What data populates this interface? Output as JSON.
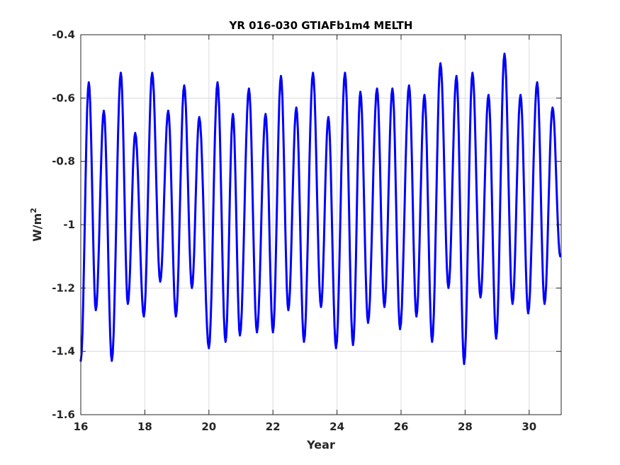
{
  "chart_data": {
    "type": "line",
    "title": "YR 016-030 GTIAFb1m4 MELTH",
    "xlabel": "Year",
    "ylabel_base": "W/m",
    "ylabel_sup": "2",
    "xlim": [
      16,
      31
    ],
    "ylim": [
      -1.6,
      -0.4
    ],
    "xticks": [
      16,
      18,
      20,
      22,
      24,
      26,
      28,
      30
    ],
    "xtick_labels": [
      "16",
      "18",
      "20",
      "22",
      "24",
      "26",
      "28",
      "30"
    ],
    "yticks": [
      -1.6,
      -1.4,
      -1.2,
      -1.0,
      -0.8,
      -0.6,
      -0.4
    ],
    "ytick_labels": [
      "-1.6",
      "-1.4",
      "-1.2",
      "-1",
      "-0.8",
      "-0.6",
      "-0.4"
    ],
    "grid": true,
    "line_color": "#0000ff",
    "series": [
      {
        "x": [
          16.0,
          16.25,
          16.47,
          16.72,
          16.97,
          17.25,
          17.47,
          17.7,
          17.97,
          18.23,
          18.48,
          18.73,
          18.97,
          19.23,
          19.47,
          19.7,
          20.0,
          20.27,
          20.52,
          20.75,
          20.97,
          21.25,
          21.5,
          21.77,
          22.0,
          22.25,
          22.48,
          22.73,
          22.97,
          23.25,
          23.5,
          23.73,
          23.97,
          24.25,
          24.5,
          24.73,
          24.97,
          25.25,
          25.48,
          25.73,
          25.97,
          26.25,
          26.48,
          26.73,
          26.97,
          27.23,
          27.48,
          27.73,
          27.97,
          28.23,
          28.48,
          28.73,
          28.97,
          29.23,
          29.48,
          29.73,
          29.97,
          30.25,
          30.48,
          30.73,
          30.97
        ],
        "y": [
          -1.43,
          -0.55,
          -1.27,
          -0.64,
          -1.43,
          -0.52,
          -1.25,
          -0.71,
          -1.29,
          -0.52,
          -1.18,
          -0.64,
          -1.29,
          -0.56,
          -1.2,
          -0.66,
          -1.39,
          -0.55,
          -1.37,
          -0.65,
          -1.35,
          -0.57,
          -1.34,
          -0.65,
          -1.34,
          -0.53,
          -1.27,
          -0.63,
          -1.37,
          -0.52,
          -1.26,
          -0.66,
          -1.39,
          -0.52,
          -1.38,
          -0.58,
          -1.31,
          -0.57,
          -1.26,
          -0.57,
          -1.33,
          -0.56,
          -1.29,
          -0.59,
          -1.37,
          -0.49,
          -1.2,
          -0.53,
          -1.44,
          -0.52,
          -1.23,
          -0.59,
          -1.36,
          -0.46,
          -1.25,
          -0.59,
          -1.28,
          -0.55,
          -1.25,
          -0.63,
          -1.1
        ]
      }
    ]
  }
}
